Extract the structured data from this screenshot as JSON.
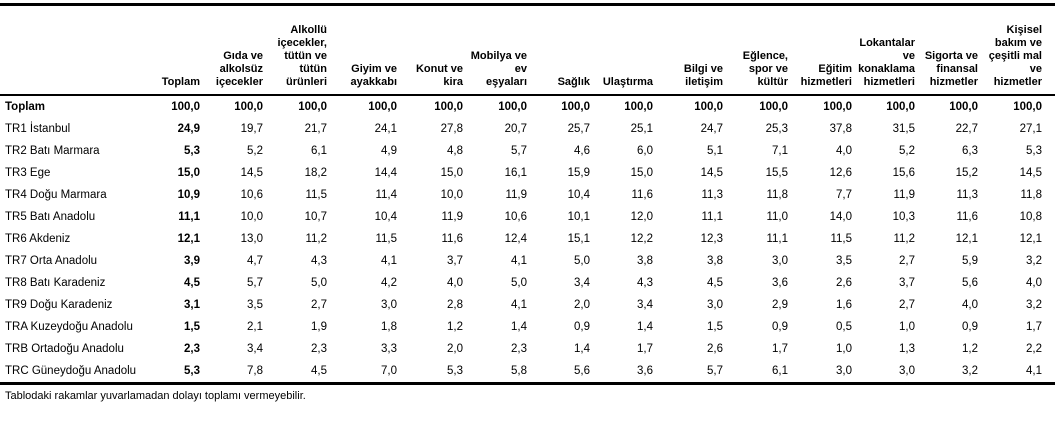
{
  "table": {
    "columns": [
      "Toplam",
      "Gıda ve\nalkolsüz\niçecekler",
      "Alkollü\niçecekler,\ntütün ve\ntütün\nürünleri",
      "Giyim ve\nayakkabı",
      "Konut ve\nkira",
      "Mobilya ve\nev\neşyaları",
      "Sağlık",
      "Ulaştırma",
      "Bilgi ve\niletişim",
      "Eğlence,\nspor ve\nkültür",
      "Eğitim\nhizmetleri",
      "Lokantalar\nve\nkonaklama\nhizmetleri",
      "Sigorta ve\nfinansal\nhizmetler",
      "Kişisel\nbakım ve\nçeşitli mal\nve\nhizmetler"
    ],
    "rows": [
      {
        "label": "Toplam",
        "bold": true,
        "values": [
          "100,0",
          "100,0",
          "100,0",
          "100,0",
          "100,0",
          "100,0",
          "100,0",
          "100,0",
          "100,0",
          "100,0",
          "100,0",
          "100,0",
          "100,0",
          "100,0"
        ]
      },
      {
        "label": "TR1 İstanbul",
        "bold": false,
        "values": [
          "24,9",
          "19,7",
          "21,7",
          "24,1",
          "27,8",
          "20,7",
          "25,7",
          "25,1",
          "24,7",
          "25,3",
          "37,8",
          "31,5",
          "22,7",
          "27,1"
        ]
      },
      {
        "label": "TR2 Batı Marmara",
        "bold": false,
        "values": [
          "5,3",
          "5,2",
          "6,1",
          "4,9",
          "4,8",
          "5,7",
          "4,6",
          "6,0",
          "5,1",
          "7,1",
          "4,0",
          "5,2",
          "6,3",
          "5,3"
        ]
      },
      {
        "label": "TR3 Ege",
        "bold": false,
        "values": [
          "15,0",
          "14,5",
          "18,2",
          "14,4",
          "15,0",
          "16,1",
          "15,9",
          "15,0",
          "14,5",
          "15,5",
          "12,6",
          "15,6",
          "15,2",
          "14,5"
        ]
      },
      {
        "label": "TR4 Doğu Marmara",
        "bold": false,
        "values": [
          "10,9",
          "10,6",
          "11,5",
          "11,4",
          "10,0",
          "11,9",
          "10,4",
          "11,6",
          "11,3",
          "11,8",
          "7,7",
          "11,9",
          "11,3",
          "11,8"
        ]
      },
      {
        "label": "TR5 Batı Anadolu",
        "bold": false,
        "values": [
          "11,1",
          "10,0",
          "10,7",
          "10,4",
          "11,9",
          "10,6",
          "10,1",
          "12,0",
          "11,1",
          "11,0",
          "14,0",
          "10,3",
          "11,6",
          "10,8"
        ]
      },
      {
        "label": "TR6 Akdeniz",
        "bold": false,
        "values": [
          "12,1",
          "13,0",
          "11,2",
          "11,5",
          "11,6",
          "12,4",
          "15,1",
          "12,2",
          "12,3",
          "11,1",
          "11,5",
          "11,2",
          "12,1",
          "12,1"
        ]
      },
      {
        "label": "TR7 Orta Anadolu",
        "bold": false,
        "values": [
          "3,9",
          "4,7",
          "4,3",
          "4,1",
          "3,7",
          "4,1",
          "5,0",
          "3,8",
          "3,8",
          "3,0",
          "3,5",
          "2,7",
          "5,9",
          "3,2"
        ]
      },
      {
        "label": "TR8 Batı Karadeniz",
        "bold": false,
        "values": [
          "4,5",
          "5,7",
          "5,0",
          "4,2",
          "4,0",
          "5,0",
          "3,4",
          "4,3",
          "4,5",
          "3,6",
          "2,6",
          "3,7",
          "5,6",
          "4,0"
        ]
      },
      {
        "label": "TR9 Doğu Karadeniz",
        "bold": false,
        "values": [
          "3,1",
          "3,5",
          "2,7",
          "3,0",
          "2,8",
          "4,1",
          "2,0",
          "3,4",
          "3,0",
          "2,9",
          "1,6",
          "2,7",
          "4,0",
          "3,2"
        ]
      },
      {
        "label": "TRA Kuzeydoğu Anadolu",
        "bold": false,
        "values": [
          "1,5",
          "2,1",
          "1,9",
          "1,8",
          "1,2",
          "1,4",
          "0,9",
          "1,4",
          "1,5",
          "0,9",
          "0,5",
          "1,0",
          "0,9",
          "1,7"
        ]
      },
      {
        "label": "TRB Ortadoğu Anadolu",
        "bold": false,
        "values": [
          "2,3",
          "3,4",
          "2,3",
          "3,3",
          "2,0",
          "2,3",
          "1,4",
          "1,7",
          "2,6",
          "1,7",
          "1,0",
          "1,3",
          "1,2",
          "2,2"
        ]
      },
      {
        "label": "TRC Güneydoğu Anadolu",
        "bold": false,
        "values": [
          "5,3",
          "7,8",
          "4,5",
          "7,0",
          "5,3",
          "5,8",
          "5,6",
          "3,6",
          "5,7",
          "6,1",
          "3,0",
          "3,0",
          "3,2",
          "4,1"
        ]
      }
    ],
    "footnote": "Tablodaki rakamlar yuvarlamadan dolayı toplamı vermeyebilir."
  }
}
